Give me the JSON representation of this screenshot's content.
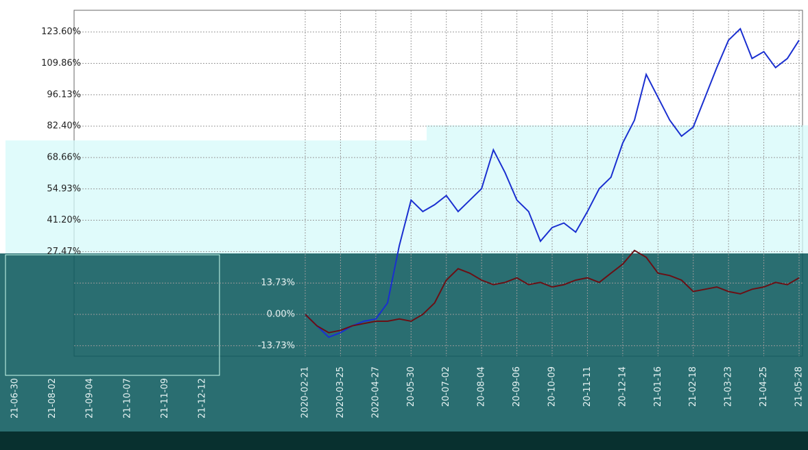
{
  "chart_data": [
    {
      "type": "line",
      "categories": [
        "2020-02-21",
        null,
        null,
        "2020-03-25",
        null,
        null,
        "2020-04-27",
        null,
        null,
        "20-05-30",
        null,
        null,
        "20-07-02",
        null,
        null,
        "20-08-04",
        null,
        null,
        "20-09-06",
        null,
        null,
        "20-10-09",
        null,
        null,
        "20-11-11",
        null,
        null,
        "20-12-14",
        null,
        null,
        "21-01-16",
        null,
        null,
        "21-02-18",
        null,
        null,
        "21-03-23",
        null,
        null,
        "21-04-25",
        null,
        null,
        "21-05-28"
      ],
      "series": [
        {
          "color": "#1a2fd0",
          "values": [
            0,
            -5,
            -10,
            -8,
            -5,
            -3,
            -2,
            5,
            30,
            50,
            45,
            48,
            52,
            45,
            50,
            55,
            72,
            62,
            50,
            45,
            32,
            38,
            40,
            36,
            45,
            55,
            60,
            75,
            85,
            105,
            95,
            85,
            78,
            82,
            95,
            108,
            120,
            125,
            112,
            115,
            108,
            112,
            120
          ]
        },
        {
          "color": "#6b0f14",
          "values": [
            0,
            -5,
            -8,
            -7,
            -5,
            -4,
            -3,
            -3,
            -2,
            -3,
            0,
            5,
            15,
            20,
            18,
            15,
            13,
            14,
            16,
            13,
            14,
            12,
            13,
            15,
            16,
            14,
            18,
            22,
            28,
            25,
            18,
            17,
            15,
            10,
            11,
            12,
            10,
            9,
            11,
            12,
            14,
            13,
            16
          ]
        }
      ],
      "ylim": [
        -18.29,
        133.1
      ],
      "yticks": [
        {
          "value": 123.6,
          "label": "123.60%"
        },
        {
          "value": 109.86,
          "label": "109.86%"
        },
        {
          "value": 96.13,
          "label": "96.13%"
        },
        {
          "value": 82.4,
          "label": "82.40%"
        },
        {
          "value": 68.66,
          "label": "68.66%"
        },
        {
          "value": 54.93,
          "label": "54.93%"
        },
        {
          "value": 41.2,
          "label": "41.20%"
        },
        {
          "value": 27.47,
          "label": "27.47%"
        },
        {
          "value": 13.73,
          "label": "13.73%"
        },
        {
          "value": 0,
          "label": "0.00%"
        },
        {
          "value": -13.73,
          "label": "-13.73%"
        }
      ],
      "grid": true
    },
    {
      "type": "line",
      "categories": [
        "21-06-30",
        "21-08-02",
        "21-09-04",
        "21-10-07",
        "21-11-09",
        "21-12-12"
      ]
    }
  ]
}
